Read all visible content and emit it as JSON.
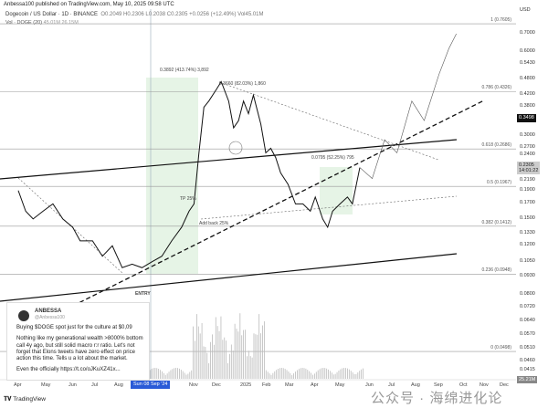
{
  "header": {
    "publisher": "Anbessa100 published on TradingView.com, May 10, 2025 09:58 UTC",
    "symbol": "Dogecoin / US Dollar · 1D · BINANCE",
    "ohlc": "O0.2049  H0.2306  L0.2038  C0.2305  +0.0256 (+12.49%)  Vol45.01M",
    "volume_legend": "Vol · DOGE (20)",
    "volume_values": "45.01M  26.15M"
  },
  "price_axis": {
    "currency": "USD",
    "labels": [
      "0.7000",
      "0.6000",
      "0.5430",
      "0.4800",
      "0.4200",
      "0.3800",
      "0.3000",
      "0.2700",
      "0.2400",
      "0.2190",
      "0.1900",
      "0.1700",
      "0.1500",
      "0.1330",
      "0.1200",
      "0.1050",
      "0.0930",
      "0.0800",
      "0.0720",
      "0.0640",
      "0.0570",
      "0.0510",
      "0.0460",
      "0.0415"
    ],
    "highlight": "0.3498",
    "current_price": "0.2305",
    "countdown": "14:01:22",
    "volume_badge": "25.21M"
  },
  "fib_levels": [
    {
      "label": "1 (0.7605)",
      "price": 0.7605
    },
    {
      "label": "0.786 (0.4326)",
      "price": 0.4326
    },
    {
      "label": "0.618 (0.2686)",
      "price": 0.2686
    },
    {
      "label": "0.5 (0.1967)",
      "price": 0.1967
    },
    {
      "label": "0.382 (0.1412)",
      "price": 0.1412
    },
    {
      "label": "0.236 (0.0948)",
      "price": 0.0948
    },
    {
      "label": "0 (0.0498)",
      "price": 0.0498
    }
  ],
  "annotations": {
    "rally_measure": "0.3892 (413.74%) 3,892",
    "drop_measure": "0.3660 (82.03%) 1,860",
    "recent_measure": "0.0795 (52.25%) 795",
    "tp": "TP 25%",
    "add_back": "Add back 25%",
    "entry": "ENTRY"
  },
  "tweet": {
    "name": "ANBESSA",
    "handle": "@Anbessa100",
    "line1": "Buying $DOGE spot just for the culture at $0,09",
    "line2": "Nothing like my generational wealth >8000% bottom call 4y ago, but still solid macro r:r ratio. Let's not forget that Elons tweets have zero effect on price action this time. Tells u a lot about the market.",
    "line3": "Even the officially https://t.co/oJKuXZ41x..."
  },
  "time_axis": {
    "months": [
      "Apr",
      "May",
      "Jun",
      "Jul",
      "Aug",
      "Nov",
      "Dec",
      "2025",
      "Feb",
      "Mar",
      "Apr",
      "May",
      "Jun",
      "Jul",
      "Aug",
      "Sep",
      "Oct",
      "Nov",
      "Dec"
    ],
    "crosshair_date": "Sun 08 Sep '24"
  },
  "footer": {
    "logo": "TradingView",
    "watermark": "公众号 · 海绵进化论"
  },
  "chart_data": {
    "type": "line",
    "title": "Dogecoin / US Dollar · 1D · BINANCE",
    "x_unit": "months since Apr 2024",
    "price": [
      [
        0,
        0.19
      ],
      [
        0.3,
        0.16
      ],
      [
        0.6,
        0.15
      ],
      [
        1,
        0.16
      ],
      [
        1.4,
        0.17
      ],
      [
        1.8,
        0.15
      ],
      [
        2.2,
        0.14
      ],
      [
        2.5,
        0.125
      ],
      [
        3,
        0.125
      ],
      [
        3.4,
        0.11
      ],
      [
        3.8,
        0.12
      ],
      [
        4.2,
        0.1
      ],
      [
        4.6,
        0.103
      ],
      [
        5,
        0.1
      ],
      [
        5.4,
        0.105
      ],
      [
        5.8,
        0.11
      ],
      [
        6.2,
        0.125
      ],
      [
        6.6,
        0.14
      ],
      [
        6.9,
        0.16
      ],
      [
        7.1,
        0.17
      ],
      [
        7.3,
        0.26
      ],
      [
        7.5,
        0.38
      ],
      [
        7.7,
        0.4
      ],
      [
        8.0,
        0.44
      ],
      [
        8.2,
        0.47
      ],
      [
        8.5,
        0.4
      ],
      [
        8.7,
        0.32
      ],
      [
        8.9,
        0.34
      ],
      [
        9.1,
        0.4
      ],
      [
        9.3,
        0.36
      ],
      [
        9.5,
        0.42
      ],
      [
        9.8,
        0.33
      ],
      [
        10.0,
        0.26
      ],
      [
        10.2,
        0.27
      ],
      [
        10.4,
        0.25
      ],
      [
        10.6,
        0.22
      ],
      [
        10.9,
        0.2
      ],
      [
        11.2,
        0.17
      ],
      [
        11.5,
        0.17
      ],
      [
        11.8,
        0.16
      ],
      [
        12.0,
        0.18
      ],
      [
        12.3,
        0.15
      ],
      [
        12.5,
        0.14
      ],
      [
        12.7,
        0.16
      ],
      [
        13.0,
        0.17
      ],
      [
        13.3,
        0.18
      ],
      [
        13.5,
        0.17
      ],
      [
        13.8,
        0.23
      ]
    ],
    "projection": [
      [
        13.8,
        0.23
      ],
      [
        14.3,
        0.21
      ],
      [
        14.8,
        0.29
      ],
      [
        15.3,
        0.26
      ],
      [
        15.9,
        0.4
      ],
      [
        16.4,
        0.34
      ],
      [
        17.0,
        0.5
      ],
      [
        17.4,
        0.62
      ],
      [
        17.7,
        0.7
      ]
    ],
    "ylim": [
      0.0415,
      0.76
    ],
    "yscale": "log"
  }
}
